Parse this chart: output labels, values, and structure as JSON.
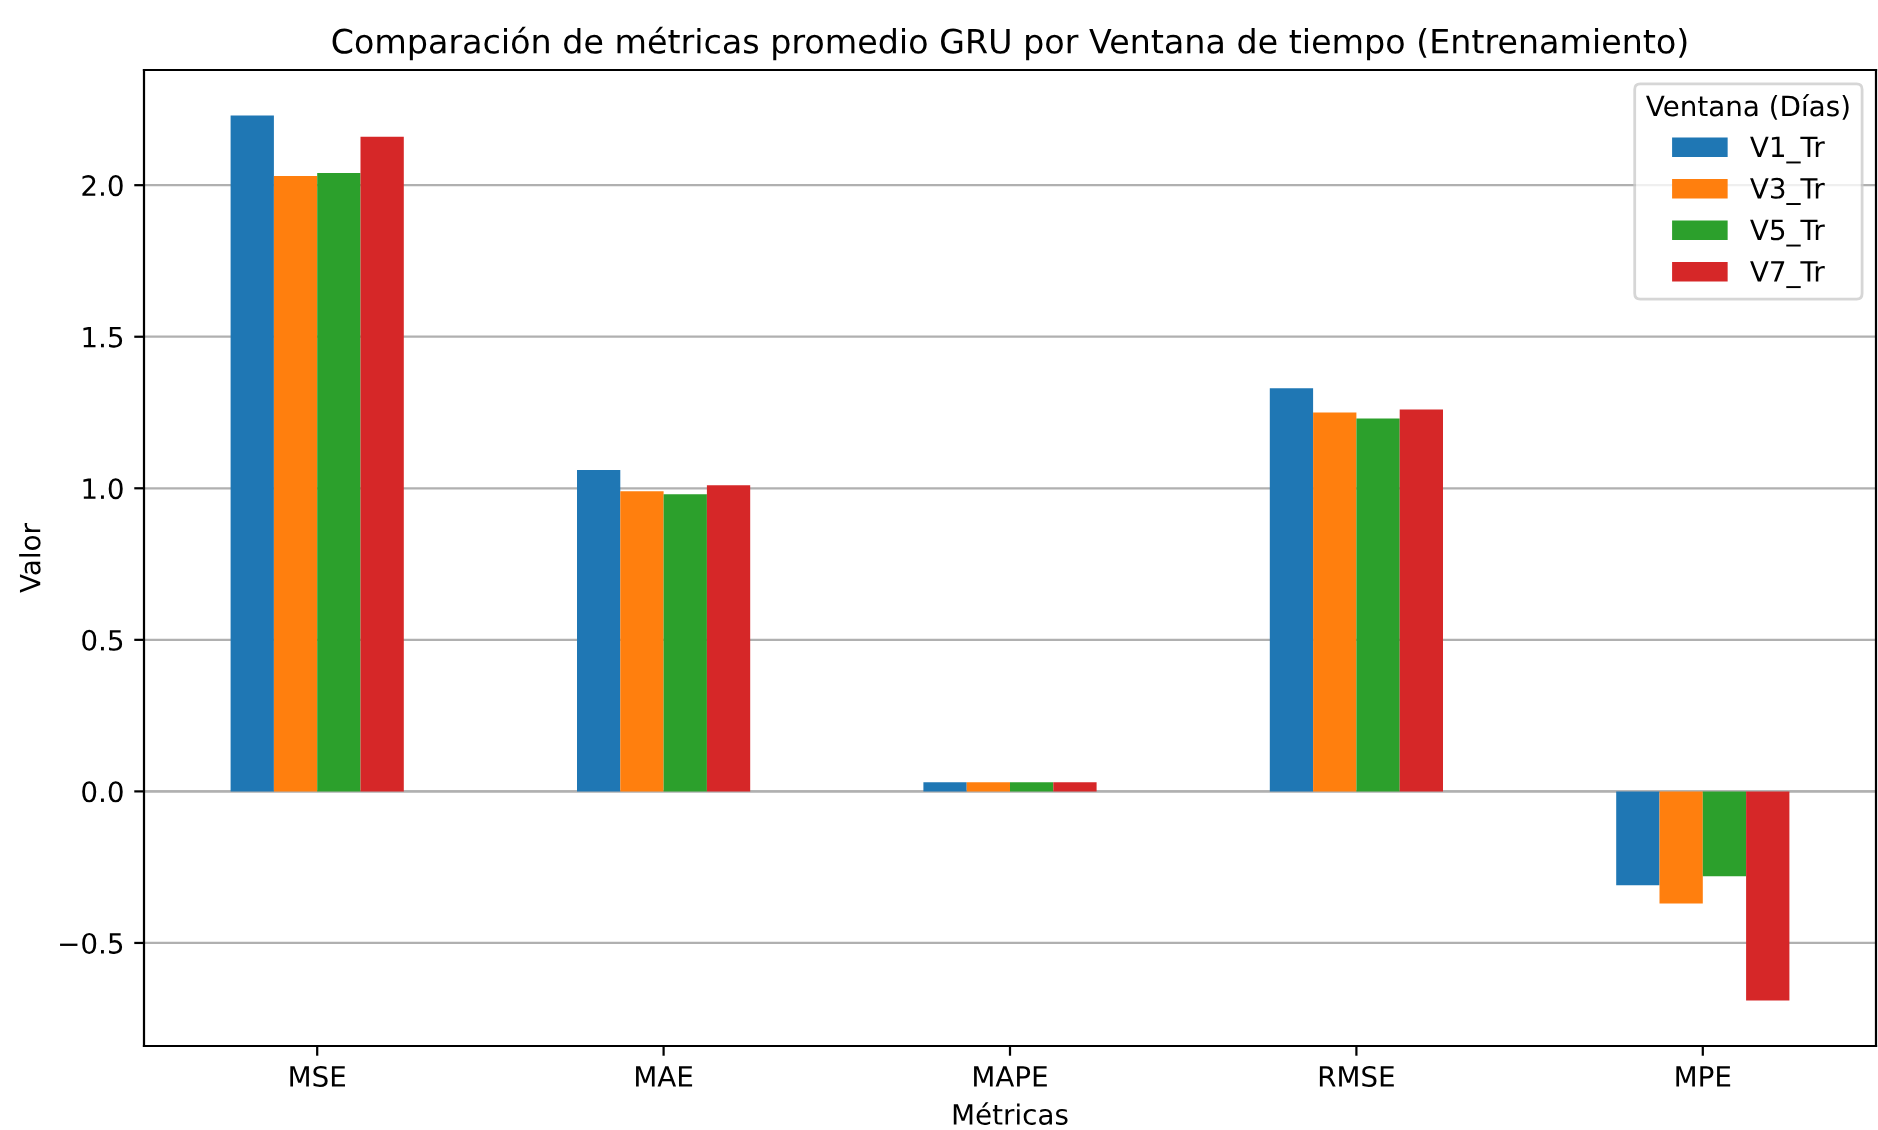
{
  "chart_data": {
    "type": "bar",
    "title": "Comparación de métricas promedio GRU por Ventana de tiempo (Entrenamiento)",
    "xlabel": "Métricas",
    "ylabel": "Valor",
    "legend_title": "Ventana (Días)",
    "categories": [
      "MSE",
      "MAE",
      "MAPE",
      "RMSE",
      "MPE"
    ],
    "series": [
      {
        "name": "V1_Tr",
        "color": "#1f77b4",
        "values": [
          2.23,
          1.06,
          0.03,
          1.33,
          -0.31
        ]
      },
      {
        "name": "V3_Tr",
        "color": "#ff7f0e",
        "values": [
          2.03,
          0.99,
          0.03,
          1.25,
          -0.37
        ]
      },
      {
        "name": "V5_Tr",
        "color": "#2ca02c",
        "values": [
          2.04,
          0.98,
          0.03,
          1.23,
          -0.28
        ]
      },
      {
        "name": "V7_Tr",
        "color": "#d62728",
        "values": [
          2.16,
          1.01,
          0.03,
          1.26,
          -0.69
        ]
      }
    ],
    "ylim": [
      -0.84,
      2.38
    ],
    "yticks": [
      {
        "value": -0.5,
        "label": "−0.5"
      },
      {
        "value": 0,
        "label": "0.0"
      },
      {
        "value": 0.5,
        "label": "0.5"
      },
      {
        "value": 1,
        "label": "1.0"
      },
      {
        "value": 1.5,
        "label": "1.5"
      },
      {
        "value": 2,
        "label": "2.0"
      }
    ],
    "grid": "y",
    "legend": "top right"
  }
}
